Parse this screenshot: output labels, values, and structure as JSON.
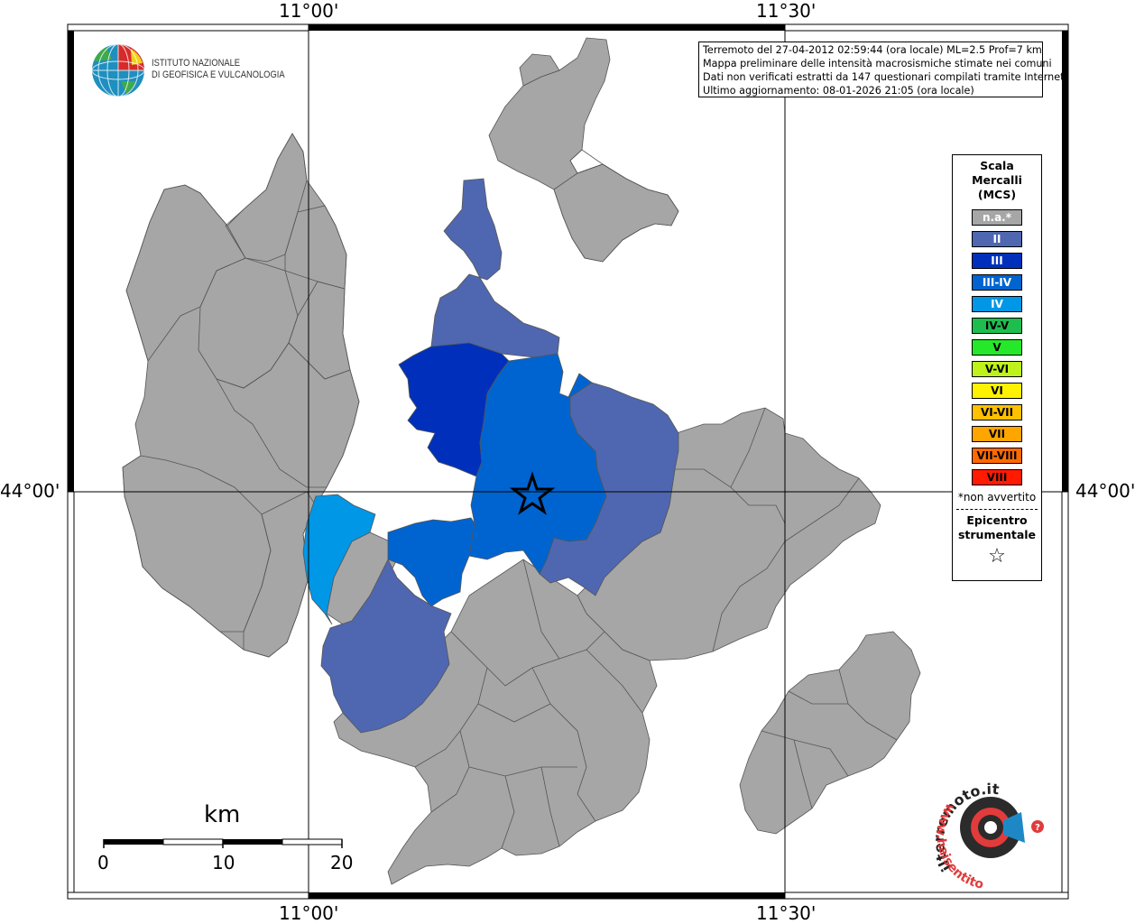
{
  "coords": {
    "lon_11_00": "11°00'",
    "lon_11_30": "11°30'",
    "lat_44_00": "44°00'"
  },
  "ingv": {
    "line1": "ISTITUTO NAZIONALE",
    "line2": "DI GEOFISICA E VULCANOLOGIA"
  },
  "info": {
    "line1": "Terremoto del 27-04-2012 02:59:44 (ora locale) ML=2.5 Prof=7 km",
    "line2": "Mappa preliminare delle intensità macrosismiche stimate nei comuni",
    "line3": "Dati non verificati estratti da 147 questionari compilati tramite Internet.",
    "line4": "Ultimo aggiornamento: 08-01-2026 21:05 (ora locale)"
  },
  "legend": {
    "title1": "Scala",
    "title2": "Mercalli",
    "title3": "(MCS)",
    "items": [
      {
        "label": "n.a.*",
        "color": "#a6a6a6"
      },
      {
        "label": "II",
        "color": "#4f67b0"
      },
      {
        "label": "III",
        "color": "#0030bb"
      },
      {
        "label": "III-IV",
        "color": "#0064d0"
      },
      {
        "label": "IV",
        "color": "#0097e6"
      },
      {
        "label": "IV-V",
        "color": "#1ebe4e"
      },
      {
        "label": "V",
        "color": "#26e82a"
      },
      {
        "label": "V-VI",
        "color": "#bef21a"
      },
      {
        "label": "VI",
        "color": "#fff200"
      },
      {
        "label": "VI-VII",
        "color": "#ffc000"
      },
      {
        "label": "VII",
        "color": "#ffa500"
      },
      {
        "label": "VII-VIII",
        "color": "#ff6a00"
      },
      {
        "label": "VIII",
        "color": "#ff1a00"
      }
    ],
    "note": "*non avvertito",
    "epi1": "Epicentro",
    "epi2": "strumentale",
    "epi_star": "☆"
  },
  "scale": {
    "unit": "km",
    "t0": "0",
    "t10": "10",
    "t20": "20"
  },
  "hsit": {
    "text1": "www.haisentito",
    "text2": "ilterremoto.it"
  },
  "colors": {
    "na": "#a6a6a6",
    "II": "#4f67b0",
    "III": "#0030bb",
    "III_IV": "#0064d0",
    "IV": "#0097e6",
    "border": "#555555"
  }
}
